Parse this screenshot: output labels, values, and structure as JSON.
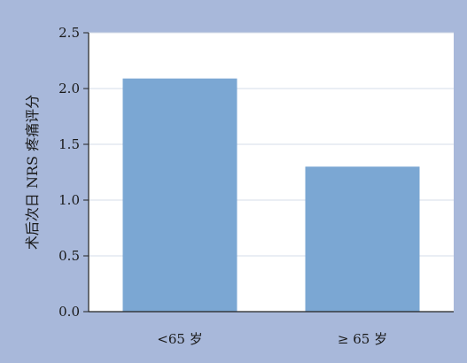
{
  "chart_data": {
    "type": "bar",
    "categories": [
      "<65 岁",
      "≥ 65 岁"
    ],
    "values": [
      2.09,
      1.3
    ],
    "title": "",
    "xlabel": "",
    "ylabel": "术后次日 NRS 疼痛评分",
    "ylim": [
      0,
      2.5
    ],
    "yticks": [
      "0.0",
      "0.5",
      "1.0",
      "1.5",
      "2.0",
      "2.5"
    ],
    "ytick_values": [
      0,
      0.5,
      1.0,
      1.5,
      2.0,
      2.5
    ],
    "grid": true,
    "legend": "none",
    "colors": {
      "background": "#a8b8da",
      "plot_area": "#ffffff",
      "bar": "#7ba7d3",
      "gridline": "#d6dce8",
      "axis": "#222222"
    }
  }
}
